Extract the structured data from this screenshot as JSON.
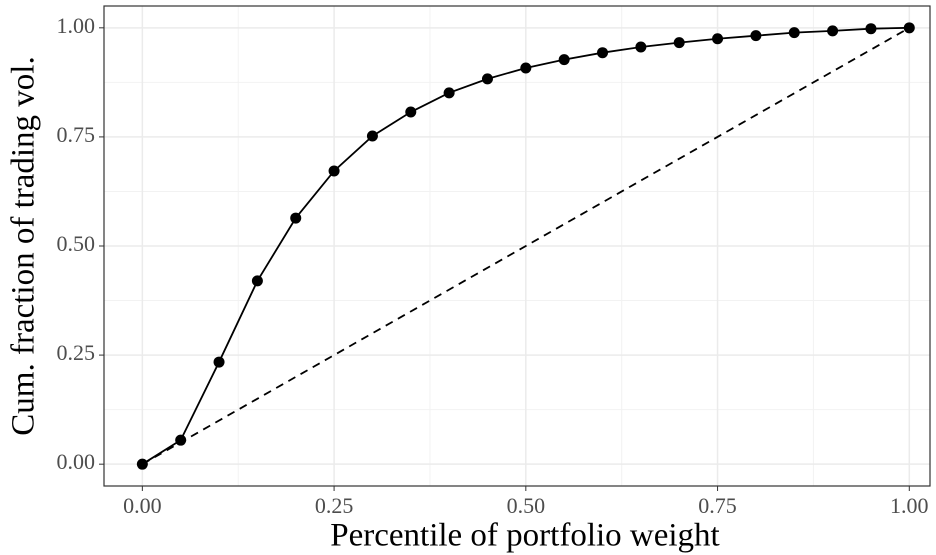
{
  "chart_data": {
    "type": "line",
    "x_label": "Percentile of portfolio weight",
    "y_label": "Cum. fraction of trading vol.",
    "x": [
      0,
      0.05,
      0.1,
      0.15,
      0.2,
      0.25,
      0.3,
      0.35,
      0.4,
      0.45,
      0.5,
      0.55,
      0.6,
      0.65,
      0.7,
      0.75,
      0.8,
      0.85,
      0.9,
      0.95,
      1
    ],
    "series": [
      {
        "color": "#000000",
        "markers": true,
        "dash": false,
        "values": [
          0,
          0.055,
          0.234,
          0.42,
          0.564,
          0.672,
          0.752,
          0.807,
          0.851,
          0.883,
          0.908,
          0.927,
          0.943,
          0.956,
          0.966,
          0.975,
          0.982,
          0.989,
          0.993,
          0.998,
          1.0
        ]
      },
      {
        "color": "#000000",
        "markers": false,
        "dash": true,
        "x": [
          0,
          1
        ],
        "values": [
          0,
          1
        ]
      }
    ],
    "xlim": [
      -0.05,
      1.027
    ],
    "ylim": [
      -0.05,
      1.05
    ],
    "xticks": [
      {
        "value": 0,
        "label": "0.00"
      },
      {
        "value": 0.25,
        "label": "0.25"
      },
      {
        "value": 0.5,
        "label": "0.50"
      },
      {
        "value": 0.75,
        "label": "0.75"
      },
      {
        "value": 1,
        "label": "1.00"
      }
    ],
    "yticks": [
      {
        "value": 0,
        "label": "0.00"
      },
      {
        "value": 0.25,
        "label": "0.25"
      },
      {
        "value": 0.5,
        "label": "0.50"
      },
      {
        "value": 0.75,
        "label": "0.75"
      },
      {
        "value": 1,
        "label": "1.00"
      }
    ],
    "grid": true
  }
}
